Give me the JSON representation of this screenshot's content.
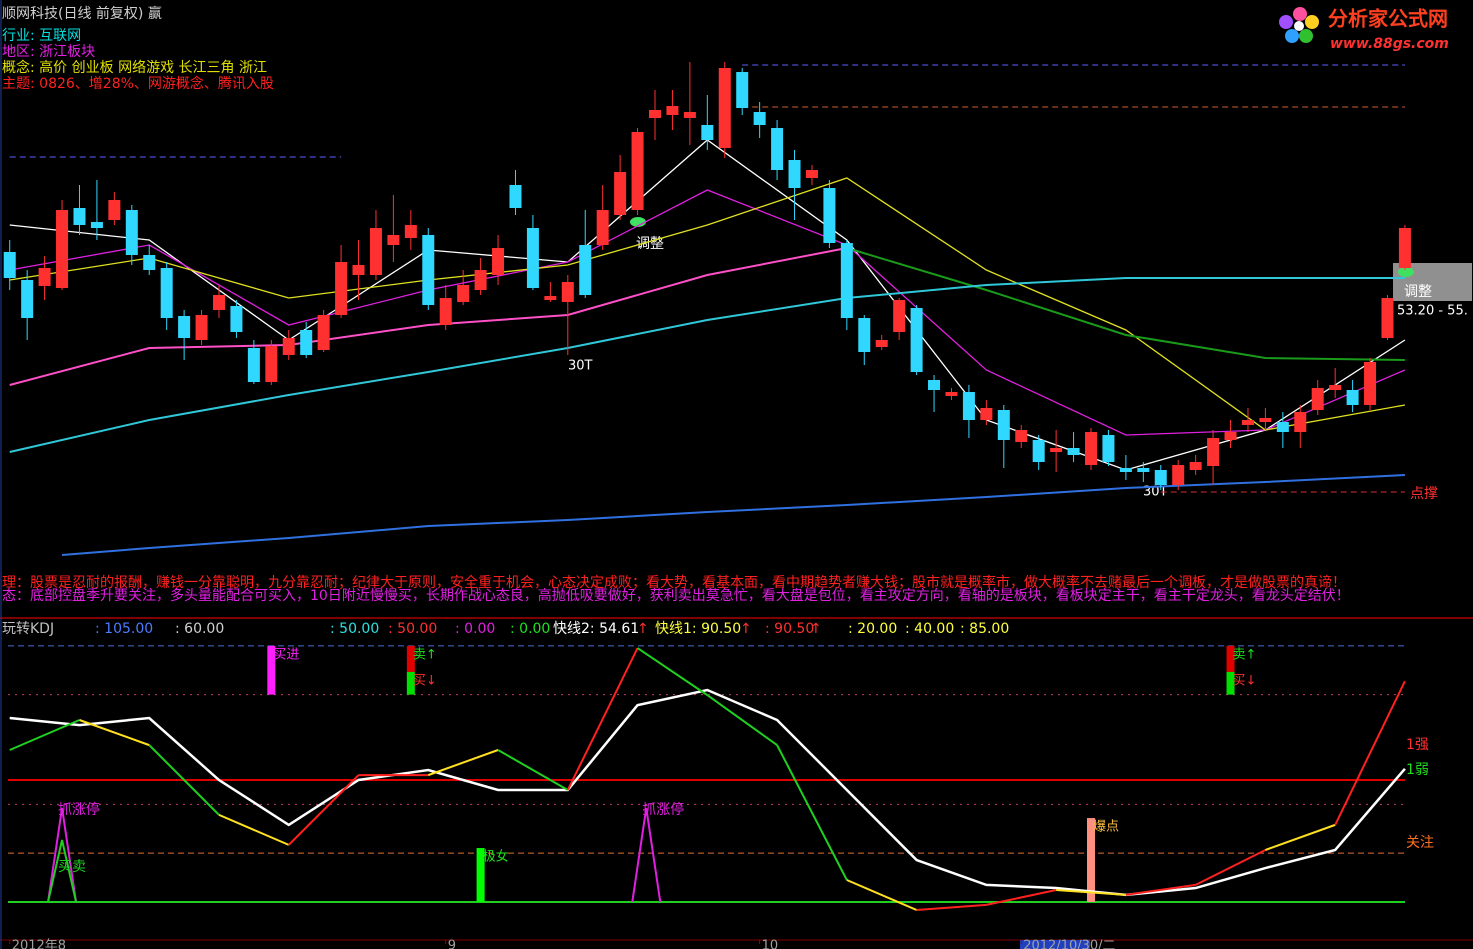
{
  "chart_data": [
    {
      "type": "candlestick",
      "title": "顺网科技(日线 前复权) 赢",
      "info": [
        "行业: 互联网",
        "地区: 浙江板块",
        "概念: 高价 创业板 网络游戏 长江三角 浙江",
        "主题: 0826、增28%、网游概念、腾讯入股"
      ],
      "info_colors": [
        "#00e0e0",
        "#e020e0",
        "#e0e000",
        "#ff2020"
      ],
      "logo": "分析家公式网",
      "logo_url": "www.88gs.com",
      "notes": [
        "理：股票是忍耐的报酬，赚钱一分靠聪明，九分靠忍耐；纪律大于原则，安全重于机会，心态决定成败；看大势，看基本面，看中期趋势者赚大钱；股市就是概率市，做大概率不去赌最后一个调板，才是做股票的真谛！",
        "态：底部控盘季升要关注，多头量能配合可买入，10日附近慢慢买，长期作战心态良，高抛低吸要做好，获利卖出莫急忙，看大盘是包位，看主攻定方向，看轴的是板块，看板块定主干，看主干定龙头，看龙头定结伏！"
      ],
      "annotations": [
        "调整",
        "30T",
        "30T",
        "调整",
        "53.20 - 55.",
        "点撑"
      ],
      "ylim": [
        42,
        70
      ],
      "up_color": "#ff3030",
      "down_color": "#30d8ff",
      "open": [
        57.4,
        56,
        55.7,
        55.6,
        59.6,
        58.9,
        59,
        59.5,
        57.25,
        56.6,
        54.2,
        53,
        54.5,
        54.7,
        52.6,
        50.9,
        52.25,
        53.5,
        52.5,
        54.25,
        56.25,
        56.25,
        57.75,
        58.1,
        58.25,
        53.75,
        54.9,
        55.5,
        56.25,
        60.75,
        58.6,
        55,
        54.9,
        57.75,
        57.75,
        59.25,
        59.5,
        64.1,
        64.25,
        64.1,
        63.75,
        62.6,
        66.4,
        64.4,
        63.6,
        62,
        61.1,
        60.6,
        57.85,
        54.1,
        52.65,
        53.4,
        54.6,
        51,
        50.2,
        50.4,
        49,
        49.5,
        47.9,
        48,
        47.4,
        47.6,
        46.75,
        48.25,
        46.6,
        46.6,
        46.5,
        45.75,
        46.5,
        46.7,
        48,
        48.75,
        48.9,
        48.9,
        48.4,
        49.5,
        50.5,
        50.5,
        49.75,
        53.1,
        56.6
      ],
      "close": [
        56.1,
        54.1,
        56.6,
        59.5,
        58.75,
        58.6,
        60,
        57.25,
        56.5,
        54.1,
        53.1,
        54.25,
        55.25,
        53.4,
        50.9,
        52.7,
        53.1,
        52.25,
        54.25,
        56.9,
        56.75,
        58.6,
        58.25,
        58.75,
        54.75,
        55.1,
        55.75,
        56.5,
        57.6,
        59.6,
        55.6,
        55.2,
        55.9,
        55.25,
        59.5,
        61.4,
        63.4,
        64.5,
        64.7,
        64.4,
        63,
        66.6,
        64.6,
        63.75,
        61.5,
        60.6,
        61.5,
        57.85,
        54.1,
        52.4,
        53,
        55,
        51.4,
        50.5,
        50.4,
        49,
        49.6,
        48,
        48.5,
        46.9,
        47.6,
        47.25,
        48.4,
        46.9,
        46.4,
        46.4,
        45.75,
        46.75,
        46.9,
        48.1,
        48.4,
        49,
        49.1,
        48.4,
        49.4,
        50.6,
        50.75,
        49.75,
        51.9,
        55.1,
        58.6
      ],
      "high": [
        58,
        56.5,
        57.2,
        60,
        60.75,
        61,
        60.4,
        59.75,
        57.75,
        56.9,
        54.5,
        54.5,
        55.75,
        55,
        53,
        53,
        53.5,
        53.9,
        54.5,
        57.75,
        58,
        59.5,
        60.25,
        59.5,
        58.6,
        55.75,
        56.5,
        57.1,
        58.25,
        61.5,
        59.25,
        55.9,
        56.25,
        59.5,
        60.75,
        62.25,
        63.6,
        65.5,
        65.5,
        66.9,
        65.25,
        66.9,
        66.6,
        64.9,
        64,
        62.5,
        61.75,
        61,
        58,
        54.25,
        53.25,
        55.1,
        54.75,
        51.25,
        50.6,
        50.75,
        50,
        49.75,
        48.75,
        48.25,
        48.5,
        48.4,
        48.6,
        48.5,
        47.25,
        46.9,
        46.75,
        47,
        47.25,
        48.5,
        49,
        49.6,
        49.6,
        49.4,
        49.75,
        51,
        51.6,
        51,
        52.1,
        55.25,
        58.75
      ],
      "low": [
        55.5,
        53,
        55,
        55.5,
        58.25,
        58,
        58.75,
        56.75,
        56.25,
        53.5,
        52,
        52.75,
        54.1,
        53.1,
        50.8,
        50.75,
        52,
        52.1,
        52.4,
        54.1,
        55,
        56,
        56.9,
        57.5,
        54.5,
        53.5,
        54.75,
        55.25,
        55.75,
        59.25,
        55.5,
        54.9,
        52.25,
        55.1,
        57.5,
        59,
        59.25,
        63,
        63.5,
        62.75,
        62.5,
        62.1,
        64.25,
        63.1,
        61,
        59,
        60.75,
        57.6,
        53.5,
        51.75,
        52.5,
        53,
        51.25,
        49.4,
        50,
        48.1,
        48.75,
        46.6,
        47.6,
        46.5,
        46.4,
        46.9,
        46.5,
        46.7,
        46,
        45.9,
        45.5,
        45.5,
        46.25,
        45.75,
        47.6,
        48.4,
        48.5,
        47.6,
        47.6,
        49.25,
        50.1,
        49.4,
        49.5,
        53,
        56.5
      ],
      "series": [
        {
          "color": "#ffffff",
          "x": [
            0,
            8,
            16,
            24,
            32,
            40,
            48,
            56,
            64,
            72,
            80
          ],
          "values": [
            58.75,
            58,
            53,
            57.5,
            56.9,
            63,
            58,
            49,
            46.5,
            48.5,
            53
          ]
        },
        {
          "color": "#e020e0",
          "x": [
            0,
            8,
            16,
            24,
            32,
            40,
            48,
            56,
            64,
            72,
            80
          ],
          "values": [
            56.5,
            57.75,
            53.75,
            55.5,
            56.9,
            60.5,
            57.75,
            51.5,
            48.25,
            48.5,
            51.5
          ]
        },
        {
          "color": "#e0e020",
          "x": [
            0,
            8,
            16,
            24,
            32,
            40,
            48,
            56,
            64,
            72,
            80
          ],
          "values": [
            56,
            57.1,
            55.1,
            56,
            56.75,
            58.75,
            61.1,
            56.5,
            53.5,
            48.5,
            49.75
          ]
        },
        {
          "color": "#ff50c8",
          "x": [
            0,
            8,
            16,
            24,
            32,
            40,
            48
          ],
          "values": [
            50.75,
            52.6,
            52.75,
            53.75,
            54.25,
            56.25,
            57.6
          ]
        },
        {
          "color": "#1a9a1a",
          "x": [
            48,
            56,
            64,
            72,
            80
          ],
          "values": [
            57.6,
            55.5,
            53.25,
            52.1,
            52
          ]
        },
        {
          "color": "#30c8d8",
          "x": [
            0,
            8,
            16,
            24,
            32,
            40,
            48,
            56,
            64,
            72,
            80
          ],
          "values": [
            47.4,
            49,
            50.25,
            51.4,
            52.6,
            54,
            55.1,
            55.75,
            56.1,
            56.1,
            56.1
          ]
        },
        {
          "color": "#3070e0",
          "x": [
            3,
            8,
            16,
            24,
            32,
            40,
            48,
            56,
            64,
            72,
            80
          ],
          "values": [
            42.25,
            42.6,
            43.1,
            43.7,
            44,
            44.4,
            44.75,
            45.15,
            45.6,
            45.9,
            46.25
          ]
        }
      ],
      "levels": [
        {
          "value": 66.75,
          "from": 42,
          "to": 80,
          "color": "#6060ff",
          "style": "dashed"
        },
        {
          "value": 64.65,
          "from": 42,
          "to": 80,
          "color": "#d06030",
          "style": "dashed"
        },
        {
          "value": 62.15,
          "from": 0,
          "to": 19,
          "color": "#6060ff",
          "style": "dashed"
        },
        {
          "value": 45.4,
          "from": 66,
          "to": 80,
          "color": "#d03030",
          "style": "dashed"
        }
      ]
    },
    {
      "type": "kdj",
      "header": [
        {
          "text": "玩转KDJ",
          "color": "#c0c0c0"
        },
        {
          "text": ": 105.00",
          "color": "#4a7cff"
        },
        {
          "text": ": 60.00",
          "color": "#d0d0d0"
        },
        {
          "text": ": 50.00",
          "color": "#30e0e0"
        },
        {
          "text": ": 50.00",
          "color": "#ff3030"
        },
        {
          "text": ": 0.00",
          "color": "#e020e0"
        },
        {
          "text": ": 0.00",
          "color": "#20e020"
        },
        {
          "text": "快线2: 54.61",
          "color": "#ffffff"
        },
        {
          "text": "↑",
          "color": "#ff3030"
        },
        {
          "text": "快线1: 90.50",
          "color": "#ffff40"
        },
        {
          "text": "↑",
          "color": "#ff3030"
        },
        {
          "text": ": 90.50",
          "color": "#ff3030"
        },
        {
          "text": "↑",
          "color": "#ff3030"
        },
        {
          "text": ": 20.00",
          "color": "#ffff40"
        },
        {
          "text": ": 40.00",
          "color": "#ffff40"
        },
        {
          "text": ": 85.00",
          "color": "#ffff40"
        }
      ],
      "ylim": [
        -15.6,
        115.6
      ],
      "levels": [
        {
          "value": 105,
          "color": "#4a6cd4",
          "style": "dashed"
        },
        {
          "value": 85,
          "color": "#c04060",
          "style": "dotted"
        },
        {
          "value": 50,
          "color": "#e00000",
          "style": "solid"
        },
        {
          "value": 40,
          "color": "#c04060",
          "style": "dotted"
        },
        {
          "value": 20,
          "color": "#e07030",
          "style": "dashed"
        },
        {
          "value": 0,
          "color": "#20d020",
          "style": "solid"
        }
      ],
      "fast": {
        "x": [
          0,
          4,
          8,
          12,
          16,
          20,
          24,
          28,
          32,
          36,
          40,
          44,
          48,
          52,
          56,
          60,
          64,
          68,
          72,
          76,
          80
        ],
        "values": [
          62.3,
          74.6,
          64.3,
          35.7,
          23.4,
          52,
          52,
          62.3,
          45.9,
          104.1,
          84.8,
          64.3,
          9,
          -3.3,
          -1.2,
          4.9,
          2.9,
          7,
          21.3,
          31.6,
          90.5
        ],
        "colors": [
          "#20d020",
          "#20d020",
          "#ffe020",
          "#20d020",
          "#ffe020",
          "#ff2020",
          "#ff2020",
          "#ffe020",
          "#20d020",
          "#ff2020",
          "#20d020",
          "#20d020",
          "#20d020",
          "#ffe020",
          "#ff2020",
          "#ff2020",
          "#ffe020",
          "#ff2020",
          "#ff2020",
          "#ffe020",
          "#ff2020"
        ]
      },
      "slow": {
        "color": "#ffffff",
        "x": [
          0,
          4,
          8,
          12,
          16,
          20,
          24,
          28,
          32,
          36,
          40,
          44,
          48,
          52,
          56,
          60,
          64,
          68,
          72,
          76,
          80
        ],
        "values": [
          75.4,
          72.5,
          75.4,
          50,
          31.6,
          50,
          54.1,
          45.9,
          45.9,
          80.7,
          86.9,
          74.6,
          45.9,
          17.2,
          7,
          5.7,
          2.9,
          5.7,
          13.9,
          21.3,
          54.61
        ]
      },
      "signals": [
        {
          "kind": "spike",
          "x": 3,
          "value": 38.5,
          "color": "#e020e0",
          "label": "抓涨停",
          "label_color": "#e020e0"
        },
        {
          "kind": "spike",
          "x": 3,
          "value": 25.4,
          "color": "#20d020",
          "label": "买卖",
          "label_color": "#20d020"
        },
        {
          "kind": "spike",
          "x": 36.5,
          "value": 38.5,
          "color": "#e020e0",
          "label": "抓涨停",
          "label_color": "#e020e0"
        },
        {
          "kind": "bar",
          "x": 15,
          "from": 85,
          "to": 105,
          "color": "#ff20ff",
          "label": "买进",
          "label_color": "#ff20ff"
        },
        {
          "kind": "bar",
          "x": 23,
          "from": 94.3,
          "to": 105,
          "color": "#e00000",
          "label": "卖↑",
          "label_color": "#20e020"
        },
        {
          "kind": "bar",
          "x": 23,
          "from": 85,
          "to": 94.3,
          "color": "#00e000",
          "label": "买↓",
          "label_color": "#ff3030"
        },
        {
          "kind": "bar",
          "x": 27,
          "from": 0,
          "to": 22.1,
          "color": "#00ff00",
          "label": "极女",
          "label_color": "#20e020"
        },
        {
          "kind": "bar",
          "x": 62,
          "from": 0,
          "to": 34.4,
          "color": "#ff9080",
          "label": "爆点",
          "label_color": "#ffc040"
        },
        {
          "kind": "bar",
          "x": 70,
          "from": 94.3,
          "to": 105,
          "color": "#e00000",
          "label": "卖↑",
          "label_color": "#20e020"
        },
        {
          "kind": "bar",
          "x": 70,
          "from": 85,
          "to": 94.3,
          "color": "#00e000",
          "label": "买↓",
          "label_color": "#ff3030"
        }
      ],
      "side_labels": [
        {
          "text": "1强",
          "color": "#ff3030"
        },
        {
          "text": "1弱",
          "color": "#20e020"
        },
        {
          "text": "关注",
          "color": "#ff7020"
        }
      ],
      "xticks": [
        {
          "value": 0,
          "label": "2012年8"
        },
        {
          "value": 25,
          "label": "9"
        },
        {
          "value": 43,
          "label": "10"
        },
        {
          "value": 58,
          "label": "2012/10/30/二"
        }
      ]
    }
  ]
}
